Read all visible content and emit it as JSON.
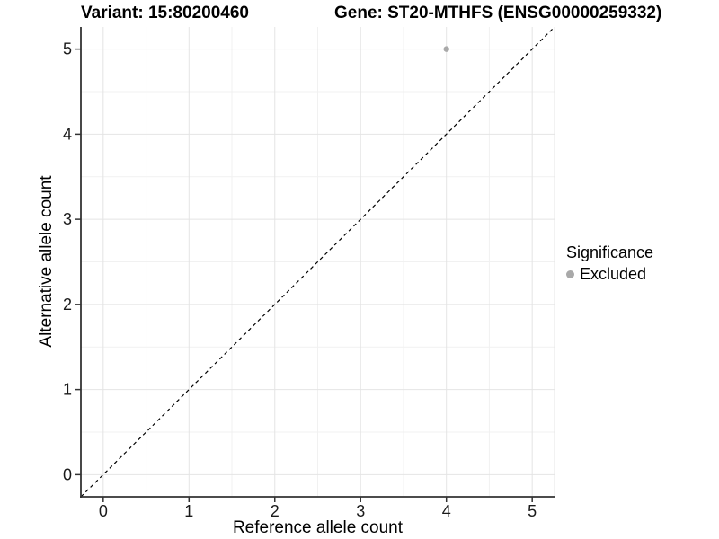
{
  "chart_data": {
    "type": "scatter",
    "title_left": "Variant: 15:80200460",
    "title_right": "Gene: ST20-MTHFS (ENSG00000259332)",
    "xlabel": "Reference allele count",
    "ylabel": "Alternative allele count",
    "xlim": [
      -0.26,
      5.26
    ],
    "ylim": [
      -0.26,
      5.26
    ],
    "x_ticks": [
      0,
      1,
      2,
      3,
      4,
      5
    ],
    "y_ticks": [
      0,
      1,
      2,
      3,
      4,
      5
    ],
    "x_minor_ticks": [
      0.5,
      1.5,
      2.5,
      3.5,
      4.5
    ],
    "y_minor_ticks": [
      0.5,
      1.5,
      2.5,
      3.5,
      4.5
    ],
    "grid": "major+minor",
    "reference_line": {
      "type": "identity",
      "from": [
        -0.26,
        -0.26
      ],
      "to": [
        5.26,
        5.26
      ],
      "style": "dashed",
      "color": "#000000"
    },
    "series": [
      {
        "name": "Excluded",
        "color": "#a9a9a9",
        "marker": "circle",
        "points": [
          {
            "x": 4,
            "y": 5
          }
        ]
      }
    ],
    "legend": {
      "title": "Significance",
      "position": "right",
      "entries": [
        {
          "label": "Excluded",
          "color": "#a9a9a9"
        }
      ]
    }
  },
  "style_colors": {
    "grid_major": "#e4e4e4",
    "grid_minor": "#f1f1f1",
    "axis_line": "#333333",
    "tick_label": "#1a1a1a"
  }
}
